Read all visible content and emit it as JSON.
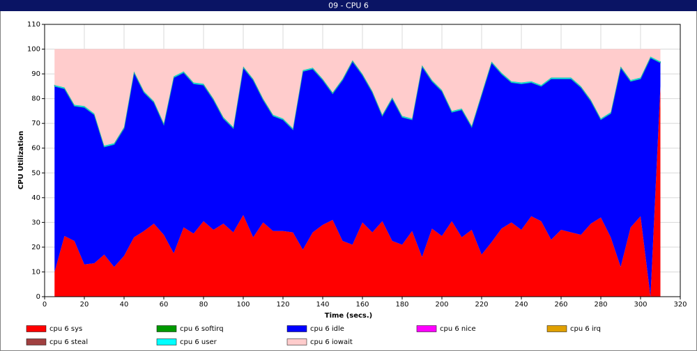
{
  "chart_data": {
    "type": "stacked_area",
    "title": "09 - CPU 6",
    "xlabel": "Time (secs.)",
    "ylabel": "CPU Utilization",
    "x": [
      5,
      10,
      15,
      20,
      25,
      30,
      35,
      40,
      45,
      50,
      55,
      60,
      65,
      70,
      75,
      80,
      85,
      90,
      95,
      100,
      105,
      110,
      115,
      120,
      125,
      130,
      135,
      140,
      145,
      150,
      155,
      160,
      165,
      170,
      175,
      180,
      185,
      190,
      195,
      200,
      205,
      210,
      215,
      220,
      225,
      230,
      235,
      240,
      245,
      250,
      255,
      260,
      265,
      270,
      275,
      280,
      285,
      290,
      295,
      300,
      305,
      310
    ],
    "series": [
      {
        "name": "cpu 6 sys",
        "color": "#ff0000",
        "values": [
          10,
          24.5,
          22.5,
          13,
          13.5,
          17,
          12,
          16.5,
          24,
          26.5,
          29.5,
          25,
          17.5,
          28,
          25.5,
          30.5,
          27,
          29.5,
          26,
          33,
          24,
          30,
          26.5,
          26.5,
          26,
          19,
          26,
          29,
          31,
          22.5,
          21,
          30,
          26,
          30.5,
          22.5,
          21,
          26.5,
          16,
          27.5,
          24.5,
          30.5,
          24,
          27,
          17,
          22,
          27.5,
          30,
          27,
          32.5,
          30.5,
          23,
          27,
          26,
          25,
          29.5,
          32,
          24,
          12,
          28,
          32.5,
          0,
          85
        ]
      },
      {
        "name": "cpu 6 softirq",
        "color": "#009900",
        "values": [
          0,
          0,
          0,
          0,
          0,
          0,
          0,
          0,
          0,
          0,
          0,
          0,
          0,
          0,
          0,
          0,
          0,
          0,
          0,
          0,
          0,
          0,
          0,
          0,
          0,
          0,
          0,
          0,
          0,
          0,
          0,
          0,
          0,
          0,
          0,
          0,
          0,
          0,
          0,
          0,
          0,
          0,
          0,
          0,
          0,
          0,
          0,
          0,
          0,
          0,
          0,
          0,
          0,
          0,
          0,
          0,
          0,
          0,
          0,
          0,
          0,
          0
        ]
      },
      {
        "name": "cpu 6 idle",
        "color": "#0000ff",
        "values": [
          75,
          59.5,
          54.5,
          63.5,
          60,
          43.5,
          49.5,
          51.5,
          66.5,
          56,
          49,
          44.5,
          71,
          62.5,
          60.5,
          55,
          52.5,
          42.5,
          42,
          59.5,
          63.5,
          49.5,
          46.5,
          45,
          41.5,
          72,
          66,
          58.5,
          51,
          65,
          74,
          59.5,
          56.5,
          42.5,
          57.5,
          51.5,
          45,
          77,
          59.5,
          58.5,
          44,
          51.5,
          41.5,
          64.5,
          72.5,
          62.5,
          56.5,
          59,
          54,
          54.5,
          65,
          61,
          62,
          59.5,
          49.5,
          39.5,
          50,
          80.5,
          59,
          55.5,
          96.5,
          9.5
        ]
      },
      {
        "name": "cpu 6 nice",
        "color": "#ff00ff",
        "values": [
          0,
          0,
          0,
          0,
          0,
          0,
          0,
          0,
          0,
          0,
          0,
          0,
          0,
          0,
          0,
          0,
          0,
          0,
          0,
          0,
          0,
          0,
          0,
          0,
          0,
          0,
          0,
          0,
          0,
          0,
          0,
          0,
          0,
          0,
          0,
          0,
          0,
          0,
          0,
          0,
          0,
          0,
          0,
          0,
          0,
          0,
          0,
          0,
          0,
          0,
          0,
          0,
          0,
          0,
          0,
          0,
          0,
          0,
          0,
          0,
          0,
          0
        ]
      },
      {
        "name": "cpu 6 irq",
        "color": "#e0a000",
        "values": [
          0,
          0,
          0,
          0,
          0,
          0,
          0,
          0,
          0,
          0,
          0,
          0,
          0,
          0,
          0,
          0,
          0,
          0,
          0,
          0,
          0,
          0,
          0,
          0,
          0,
          0,
          0,
          0,
          0,
          0,
          0,
          0,
          0,
          0,
          0,
          0,
          0,
          0,
          0,
          0,
          0,
          0,
          0,
          0,
          0,
          0,
          0,
          0,
          0,
          0,
          0,
          0,
          0,
          0,
          0,
          0,
          0,
          0,
          0,
          0,
          0,
          0
        ]
      },
      {
        "name": "cpu 6 steal",
        "color": "#a04040",
        "values": [
          0,
          0,
          0,
          0,
          0,
          0,
          0,
          0,
          0,
          0,
          0,
          0,
          0,
          0,
          0,
          0,
          0,
          0,
          0,
          0,
          0,
          0,
          0,
          0,
          0,
          0,
          0,
          0,
          0,
          0,
          0,
          0,
          0,
          0,
          0,
          0,
          0,
          0,
          0,
          0,
          0,
          0,
          0,
          0,
          0,
          0,
          0,
          0,
          0,
          0,
          0,
          0,
          0,
          0,
          0,
          0,
          0,
          0,
          0,
          0,
          0,
          0
        ]
      },
      {
        "name": "cpu 6 user",
        "color": "#00ffff",
        "values": [
          0.5,
          0.5,
          0.5,
          0.5,
          0.5,
          0.5,
          0.5,
          0.5,
          0.5,
          0.5,
          0.5,
          0.5,
          0.5,
          0.5,
          0.5,
          0.5,
          0.5,
          0.5,
          0.5,
          0.5,
          0.5,
          0.5,
          0.5,
          0.5,
          0.5,
          0.5,
          0.5,
          0.5,
          0.5,
          0.5,
          0.5,
          0.5,
          0.5,
          0.5,
          0.5,
          0.5,
          0.5,
          0.5,
          0.5,
          0.5,
          0.5,
          0.5,
          0.5,
          0.5,
          0.5,
          0.5,
          0.5,
          0.5,
          0.5,
          0.5,
          0.5,
          0.5,
          0.5,
          0.5,
          0.5,
          0.5,
          0.5,
          0.5,
          0.5,
          0.5,
          0.5,
          0.5
        ]
      },
      {
        "name": "cpu 6 iowait",
        "color": "#ffcccc",
        "values": [
          14.5,
          15.5,
          22.5,
          23,
          26,
          39,
          38,
          31.5,
          9,
          17,
          21,
          30,
          11,
          9,
          13.5,
          14,
          20,
          27.5,
          31.5,
          7,
          12,
          20,
          26.5,
          28,
          32,
          8.5,
          7.5,
          12,
          17.5,
          12,
          4.5,
          10,
          17,
          26.5,
          19.5,
          27,
          28,
          6.5,
          12.5,
          16.5,
          25,
          24,
          31,
          18,
          5,
          9.5,
          13,
          13.5,
          13,
          14.5,
          11.5,
          11.5,
          11.5,
          15,
          20.5,
          28,
          25.5,
          7,
          12.5,
          11.5,
          3,
          5
        ]
      }
    ],
    "xlim": [
      0,
      320
    ],
    "xticks": [
      0,
      20,
      40,
      60,
      80,
      100,
      120,
      140,
      160,
      180,
      200,
      220,
      240,
      260,
      280,
      300,
      320
    ],
    "ylim": [
      0,
      110
    ],
    "yticks": [
      0,
      10,
      20,
      30,
      40,
      50,
      60,
      70,
      80,
      90,
      100,
      110
    ],
    "grid": true,
    "legend": "bottom"
  }
}
